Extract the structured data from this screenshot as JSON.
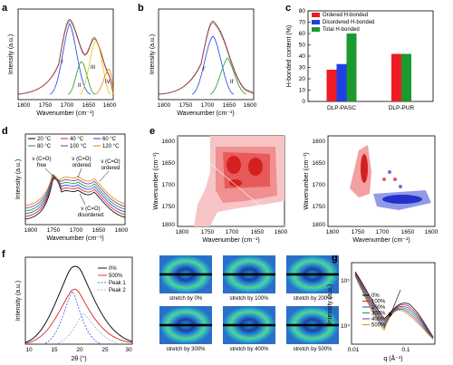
{
  "panels": {
    "a": {
      "label": "a",
      "xlabel": "Wavenumber (cm⁻¹)",
      "ylabel": "Intensity (a.u.)",
      "xticks": [
        "1800",
        "1750",
        "1700",
        "1650",
        "1600"
      ],
      "peaks": [
        "I",
        "II",
        "III",
        "IV"
      ]
    },
    "b": {
      "label": "b",
      "xlabel": "Wavenumber (cm⁻¹)",
      "ylabel": "Intensity (a.u.)",
      "xticks": [
        "1800",
        "1750",
        "1700",
        "1650",
        "1600"
      ],
      "peaks": [
        "I'",
        "II'"
      ]
    },
    "c": {
      "label": "c",
      "ylabel": "H-bonded content (%)",
      "yticks": [
        "0",
        "10",
        "20",
        "30",
        "40",
        "50",
        "60",
        "70",
        "80"
      ],
      "legend": [
        "Ordered H-bonded",
        "Disordered H-bonded",
        "Total H-bonded"
      ],
      "colors": [
        "#ee1c24",
        "#1f3fe6",
        "#1a9a2e"
      ]
    },
    "d": {
      "label": "d",
      "xlabel": "Wavenumber (cm⁻¹)",
      "ylabel": "Intensity (a.u.)",
      "xticks": [
        "1800",
        "1750",
        "1700",
        "1650",
        "1600"
      ],
      "legend": [
        "20 °C",
        "40 °C",
        "60 °C",
        "80 °C",
        "100 °C",
        "120 °C"
      ],
      "colors": [
        "#000000",
        "#e41a1c",
        "#1f3fe6",
        "#1a9a2e",
        "#7b2fb8",
        "#e08a00"
      ],
      "annotations": {
        "free": [
          "ν (C=O)",
          "free"
        ],
        "ordered1": [
          "ν (C=O)",
          "ordered"
        ],
        "ordered2": [
          "ν (C=O)",
          "ordered"
        ],
        "disordered": [
          "ν (C=O)",
          "disordered"
        ]
      }
    },
    "e": {
      "label": "e",
      "xlabel": "Wavenumber (cm⁻¹)",
      "ylabel": "Wavenumber (cm⁻¹)",
      "xticks": [
        "1800",
        "1750",
        "1700",
        "1650",
        "1600"
      ],
      "yticks": [
        "1600",
        "1650",
        "1700",
        "1750",
        "1800"
      ]
    },
    "f": {
      "label": "f",
      "xlabel": "2θ (°)",
      "ylabel": "Intensity (a.u.)",
      "xticks": [
        "10",
        "15",
        "20",
        "25",
        "30"
      ],
      "legend": [
        "0%",
        "500%",
        "Peak 1",
        "Peak 2"
      ],
      "images": [
        "stretch by 0%",
        "stretch by 100%",
        "stretch by 200%",
        "stretch by 300%",
        "stretch by 400%",
        "stretch by 500%"
      ]
    },
    "g": {
      "label": "g",
      "xlabel": "q (Å⁻¹)",
      "ylabel": "Intensity (a.u.)",
      "xticks": [
        "0.01",
        "0.1"
      ],
      "yticks": [
        "10⁴",
        "10⁵"
      ],
      "legend": [
        "0%",
        "100%",
        "200%",
        "300%",
        "400%",
        "500%"
      ],
      "colors": [
        "#000000",
        "#e41a1c",
        "#1f3fe6",
        "#1a9a2e",
        "#7b2fb8",
        "#e08a00"
      ]
    }
  },
  "chart_data": [
    {
      "panel": "c",
      "type": "bar",
      "categories": [
        "DLP-PASC",
        "DLP-PUR"
      ],
      "series": [
        {
          "name": "Ordered H-bonded",
          "values": [
            28,
            42
          ]
        },
        {
          "name": "Disordered H-bonded",
          "values": [
            33,
            0
          ]
        },
        {
          "name": "Total H-bonded",
          "values": [
            60,
            42
          ]
        }
      ],
      "ylabel": "H-bonded content (%)",
      "ylim": [
        0,
        80
      ],
      "legend": "top-left"
    }
  ]
}
